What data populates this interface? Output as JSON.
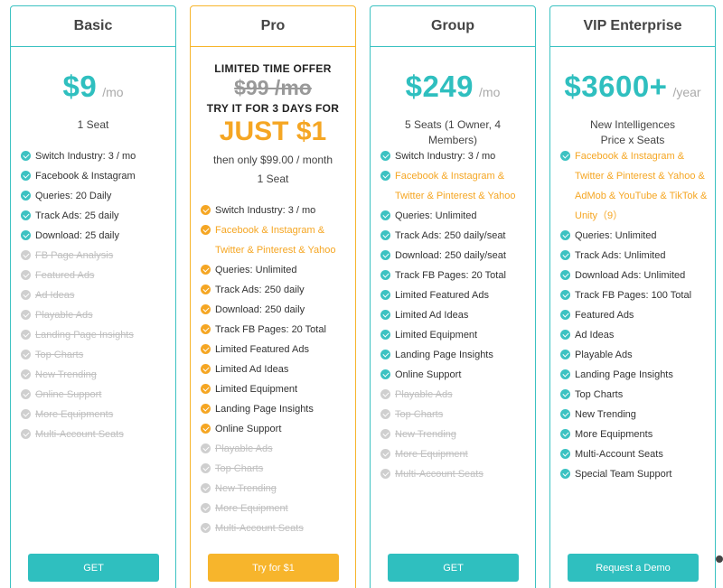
{
  "plans": [
    {
      "name": "Basic",
      "price": "$9",
      "period": "/mo",
      "seats": "1 Seat",
      "button": "GET",
      "features": [
        {
          "text": "Switch Industry: 3 / mo",
          "state": "on"
        },
        {
          "text": "Facebook & Instagram",
          "state": "on"
        },
        {
          "text": "Queries: 20 Daily",
          "state": "on"
        },
        {
          "text": "Track Ads: 25 daily",
          "state": "on"
        },
        {
          "text": "Download: 25 daily",
          "state": "on"
        },
        {
          "text": "FB Page Analysis",
          "state": "off"
        },
        {
          "text": "Featured Ads",
          "state": "off"
        },
        {
          "text": "Ad Ideas",
          "state": "off"
        },
        {
          "text": "Playable Ads",
          "state": "off"
        },
        {
          "text": "Landing Page Insights",
          "state": "off"
        },
        {
          "text": "Top Charts",
          "state": "off"
        },
        {
          "text": "New Trending",
          "state": "off"
        },
        {
          "text": "Online Support",
          "state": "off"
        },
        {
          "text": "More Equipments",
          "state": "off"
        },
        {
          "text": "Multi-Account Seats",
          "state": "off"
        }
      ]
    },
    {
      "name": "Pro",
      "offer_title": "LIMITED TIME OFFER",
      "old_price": "$99 /mo",
      "try_text": "TRY IT FOR 3 DAYS FOR",
      "offer_price": "JUST $1",
      "then_text": "then only $99.00 / month",
      "seats": "1 Seat",
      "button": "Try for $1",
      "features": [
        {
          "text": "Switch Industry: 3 / mo",
          "state": "on"
        },
        {
          "text": "Facebook & Instagram & Twitter & Pinterest & Yahoo",
          "state": "hl"
        },
        {
          "text": "Queries: Unlimited",
          "state": "on"
        },
        {
          "text": "Track Ads: 250 daily",
          "state": "on"
        },
        {
          "text": "Download: 250 daily",
          "state": "on"
        },
        {
          "text": "Track FB Pages: 20 Total",
          "state": "on"
        },
        {
          "text": "Limited Featured Ads",
          "state": "on"
        },
        {
          "text": "Limited Ad Ideas",
          "state": "on"
        },
        {
          "text": "Limited Equipment",
          "state": "on"
        },
        {
          "text": "Landing Page Insights",
          "state": "on"
        },
        {
          "text": "Online Support",
          "state": "on"
        },
        {
          "text": "Playable Ads",
          "state": "off"
        },
        {
          "text": "Top Charts",
          "state": "off"
        },
        {
          "text": "New Trending",
          "state": "off"
        },
        {
          "text": "More Equipment",
          "state": "off"
        },
        {
          "text": "Multi-Account Seats",
          "state": "off"
        }
      ]
    },
    {
      "name": "Group",
      "price": "$249",
      "period": "/mo",
      "seats": "5 Seats (1 Owner, 4 Members)",
      "button": "GET",
      "features": [
        {
          "text": "Switch Industry: 3 / mo",
          "state": "on"
        },
        {
          "text": "Facebook & Instagram & Twitter & Pinterest & Yahoo",
          "state": "hl"
        },
        {
          "text": "Queries: Unlimited",
          "state": "on"
        },
        {
          "text": "Track Ads: 250 daily/seat",
          "state": "on"
        },
        {
          "text": "Download: 250 daily/seat",
          "state": "on"
        },
        {
          "text": "Track FB Pages: 20 Total",
          "state": "on"
        },
        {
          "text": "Limited Featured Ads",
          "state": "on"
        },
        {
          "text": "Limited Ad Ideas",
          "state": "on"
        },
        {
          "text": "Limited Equipment",
          "state": "on"
        },
        {
          "text": "Landing Page Insights",
          "state": "on"
        },
        {
          "text": "Online Support",
          "state": "on"
        },
        {
          "text": "Playable Ads",
          "state": "off"
        },
        {
          "text": "Top Charts",
          "state": "off"
        },
        {
          "text": "New Trending",
          "state": "off"
        },
        {
          "text": "More Equipment",
          "state": "off"
        },
        {
          "text": "Multi-Account Seats",
          "state": "off"
        }
      ]
    },
    {
      "name": "VIP Enterprise",
      "price": "$3600+",
      "period": "/year",
      "seats_line1": "New Intelligences",
      "seats_line2": "Price x Seats",
      "button": "Request a Demo",
      "features": [
        {
          "text": "Facebook & Instagram & Twitter & Pinterest & Yahoo & AdMob & YouTube & TikTok & Unity（9）",
          "state": "hl"
        },
        {
          "text": "Queries: Unlimited",
          "state": "on"
        },
        {
          "text": "Track Ads: Unlimited",
          "state": "on"
        },
        {
          "text": "Download Ads: Unlimited",
          "state": "on"
        },
        {
          "text": "Track FB Pages: 100 Total",
          "state": "on"
        },
        {
          "text": "Featured Ads",
          "state": "on"
        },
        {
          "text": "Ad Ideas",
          "state": "on"
        },
        {
          "text": "Playable Ads",
          "state": "on"
        },
        {
          "text": "Landing Page Insights",
          "state": "on"
        },
        {
          "text": "Top Charts",
          "state": "on"
        },
        {
          "text": "New Trending",
          "state": "on"
        },
        {
          "text": "More Equipments",
          "state": "on"
        },
        {
          "text": "Multi-Account Seats",
          "state": "on"
        },
        {
          "text": "Special Team Support",
          "state": "on"
        }
      ]
    }
  ],
  "colors": {
    "teal": "#2fbfbf",
    "orange": "#f5a623",
    "disabled": "#c0c0c0"
  },
  "icons": {
    "check": "check-circle-icon"
  }
}
